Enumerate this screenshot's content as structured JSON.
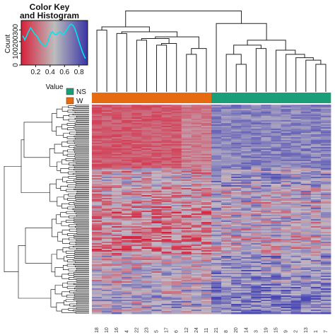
{
  "chart_data": {
    "type": "heatmap",
    "color_key": {
      "title_line1": "Color Key",
      "title_line2": "and Histogram",
      "xlabel": "Value",
      "ylabel": "Count",
      "x_ticks": [
        "0.2",
        "0.4",
        "0.6",
        "0.8"
      ],
      "x_tick_values": [
        0.2,
        0.4,
        0.6,
        0.8
      ],
      "y_ticks": [
        "0",
        "100",
        "200",
        "300"
      ],
      "y_tick_values": [
        0,
        100,
        200,
        300
      ],
      "xlim": [
        0.0,
        0.92
      ],
      "ylim": [
        0,
        380
      ],
      "gradient": {
        "low": "#d8203a",
        "mid": "#bdbdbd",
        "high": "#3a35a5"
      },
      "histogram_color": "#00e5ee",
      "histogram": [
        [
          0.02,
          250
        ],
        [
          0.04,
          230
        ],
        [
          0.05,
          215
        ],
        [
          0.07,
          240
        ],
        [
          0.09,
          270
        ],
        [
          0.11,
          295
        ],
        [
          0.13,
          318
        ],
        [
          0.15,
          300
        ],
        [
          0.17,
          280
        ],
        [
          0.19,
          262
        ],
        [
          0.21,
          252
        ],
        [
          0.23,
          236
        ],
        [
          0.25,
          210
        ],
        [
          0.27,
          190
        ],
        [
          0.29,
          180
        ],
        [
          0.31,
          168
        ],
        [
          0.33,
          160
        ],
        [
          0.35,
          176
        ],
        [
          0.37,
          200
        ],
        [
          0.39,
          238
        ],
        [
          0.41,
          268
        ],
        [
          0.43,
          285
        ],
        [
          0.45,
          272
        ],
        [
          0.47,
          258
        ],
        [
          0.49,
          262
        ],
        [
          0.51,
          275
        ],
        [
          0.53,
          282
        ],
        [
          0.55,
          276
        ],
        [
          0.57,
          262
        ],
        [
          0.59,
          265
        ],
        [
          0.61,
          280
        ],
        [
          0.63,
          300
        ],
        [
          0.65,
          318
        ],
        [
          0.67,
          338
        ],
        [
          0.69,
          348
        ],
        [
          0.71,
          342
        ],
        [
          0.73,
          328
        ],
        [
          0.75,
          300
        ],
        [
          0.77,
          262
        ],
        [
          0.79,
          220
        ],
        [
          0.81,
          180
        ],
        [
          0.83,
          145
        ],
        [
          0.85,
          110
        ],
        [
          0.87,
          80
        ],
        [
          0.89,
          55
        ]
      ]
    },
    "legend": [
      {
        "label": "NS",
        "color": "#1a9e77"
      },
      {
        "label": "W",
        "color": "#e66a10"
      }
    ],
    "columns": [
      "18",
      "10",
      "16",
      "4",
      "22",
      "23",
      "5",
      "17",
      "6",
      "12",
      "24",
      "11",
      "21",
      "8",
      "20",
      "14",
      "3",
      "19",
      "15",
      "9",
      "2",
      "13",
      "1",
      "7"
    ],
    "column_groups": [
      "W",
      "W",
      "W",
      "W",
      "W",
      "W",
      "W",
      "W",
      "W",
      "W",
      "W",
      "W",
      "NS",
      "NS",
      "NS",
      "NS",
      "NS",
      "NS",
      "NS",
      "NS",
      "NS",
      "NS",
      "NS",
      "NS"
    ],
    "group_colors": {
      "W": "#e66a10",
      "NS": "#1a9e77"
    },
    "heat_colors": {
      "low": "#d8203a",
      "mid": "#c0b8c4",
      "high": "#4a48b4"
    }
  }
}
